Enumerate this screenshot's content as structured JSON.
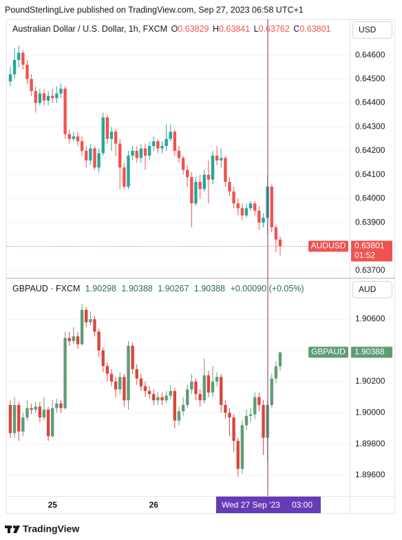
{
  "header": {
    "publisher": "PoundSterlingLive published on TradingView.com, Sep 27, 2023 06:58 UTC+1"
  },
  "crosshair_label": {
    "date": "Wed 27 Sep '23",
    "time": "03:00"
  },
  "footer": {
    "brand": "TradingView"
  },
  "chart_data": [
    {
      "type": "candlestick",
      "title": "Australian Dollar / U.S. Dollar, 1h, FXCM",
      "ohlc_labels": [
        "O",
        "H",
        "L",
        "C"
      ],
      "currency": "USD",
      "symbol": "AUDUSD",
      "countdown": "01:52",
      "price_line": true,
      "grid": true,
      "up_color": "#26a69a",
      "down_color": "#ef5350",
      "ylim": [
        0.6367,
        0.6475
      ],
      "yticks": [
        {
          "value": 0.646,
          "label": "0.64600"
        },
        {
          "value": 0.645,
          "label": "0.64500"
        },
        {
          "value": 0.644,
          "label": "0.64400"
        },
        {
          "value": 0.643,
          "label": "0.64300"
        },
        {
          "value": 0.642,
          "label": "0.64200"
        },
        {
          "value": 0.641,
          "label": "0.64100"
        },
        {
          "value": 0.64,
          "label": "0.64000"
        },
        {
          "value": 0.639,
          "label": "0.63900"
        },
        {
          "value": 0.638,
          "label": "0.63800"
        },
        {
          "value": 0.637,
          "label": "0.63700"
        }
      ],
      "open": [
        0.6449,
        0.6452,
        0.6458,
        0.6461,
        0.6456,
        0.645,
        0.6445,
        0.644,
        0.6444,
        0.6441,
        0.6443,
        0.6442,
        0.6444,
        0.6446,
        0.6427,
        0.6425,
        0.6426,
        0.6424,
        0.642,
        0.6416,
        0.6421,
        0.6413,
        0.6419,
        0.6434,
        0.6425,
        0.6428,
        0.6423,
        0.6413,
        0.6405,
        0.6418,
        0.642,
        0.6417,
        0.6421,
        0.6418,
        0.6422,
        0.6424,
        0.6421,
        0.6422,
        0.6425,
        0.6428,
        0.642,
        0.6417,
        0.6412,
        0.6409,
        0.6398,
        0.6407,
        0.6404,
        0.641,
        0.6408,
        0.6418,
        0.6416,
        0.6417,
        0.6407,
        0.6403,
        0.6398,
        0.6396,
        0.6393,
        0.6396,
        0.6398,
        0.6395,
        0.639,
        0.6392,
        0.6405,
        0.6388,
        0.63829
      ],
      "high": [
        0.6455,
        0.6463,
        0.6464,
        0.6462,
        0.6458,
        0.6452,
        0.6447,
        0.6446,
        0.6446,
        0.6445,
        0.6446,
        0.6447,
        0.6448,
        0.6447,
        0.6429,
        0.6428,
        0.6428,
        0.6426,
        0.6422,
        0.6423,
        0.6422,
        0.6421,
        0.6436,
        0.6435,
        0.643,
        0.6429,
        0.6425,
        0.6415,
        0.642,
        0.6422,
        0.6422,
        0.6423,
        0.6423,
        0.6424,
        0.6426,
        0.6425,
        0.6424,
        0.6431,
        0.6431,
        0.6429,
        0.6422,
        0.6418,
        0.6414,
        0.6411,
        0.6409,
        0.641,
        0.6412,
        0.6416,
        0.642,
        0.6422,
        0.6421,
        0.6418,
        0.6409,
        0.6405,
        0.64,
        0.6398,
        0.6398,
        0.6399,
        0.6399,
        0.6397,
        0.6394,
        0.641,
        0.6406,
        0.6389,
        0.63841
      ],
      "low": [
        0.6447,
        0.645,
        0.6455,
        0.6454,
        0.6448,
        0.6443,
        0.6436,
        0.6439,
        0.6439,
        0.6439,
        0.644,
        0.644,
        0.6442,
        0.6425,
        0.6423,
        0.6424,
        0.6422,
        0.6418,
        0.6413,
        0.6414,
        0.6412,
        0.6411,
        0.6418,
        0.6423,
        0.642,
        0.6418,
        0.6404,
        0.6404,
        0.6404,
        0.6416,
        0.6415,
        0.6415,
        0.6412,
        0.6416,
        0.642,
        0.6419,
        0.6419,
        0.642,
        0.6424,
        0.6418,
        0.6415,
        0.641,
        0.6405,
        0.6388,
        0.6397,
        0.64,
        0.6403,
        0.6398,
        0.6406,
        0.6414,
        0.6413,
        0.6405,
        0.6401,
        0.6396,
        0.6393,
        0.6391,
        0.6392,
        0.6395,
        0.6393,
        0.6387,
        0.6388,
        0.6385,
        0.6386,
        0.63775,
        0.63762
      ],
      "close": [
        0.6452,
        0.6458,
        0.6461,
        0.6456,
        0.645,
        0.6445,
        0.644,
        0.6444,
        0.6441,
        0.6443,
        0.6442,
        0.6444,
        0.6446,
        0.6427,
        0.6425,
        0.6426,
        0.6424,
        0.642,
        0.6416,
        0.6421,
        0.6413,
        0.6419,
        0.6434,
        0.6425,
        0.6428,
        0.6423,
        0.6413,
        0.6405,
        0.6418,
        0.642,
        0.6417,
        0.6421,
        0.6418,
        0.6422,
        0.6424,
        0.6421,
        0.6422,
        0.6425,
        0.6428,
        0.642,
        0.6417,
        0.6412,
        0.6409,
        0.6398,
        0.6407,
        0.6404,
        0.641,
        0.6408,
        0.6418,
        0.6416,
        0.6417,
        0.6407,
        0.6403,
        0.6398,
        0.6396,
        0.6393,
        0.6396,
        0.6398,
        0.6395,
        0.639,
        0.6392,
        0.6405,
        0.6388,
        0.63829,
        0.63801
      ]
    },
    {
      "type": "candlestick",
      "title": "GBPAUD · FXCM",
      "change_label": "+0.00090 (+0.05%)",
      "currency": "AUD",
      "symbol": "GBPAUD",
      "price_line": false,
      "grid": true,
      "up_color": "#5f9c78",
      "down_color": "#d9463b",
      "ylim": [
        1.89467,
        1.90858
      ],
      "yticks": [
        {
          "value": 1.906,
          "label": "1.90600"
        },
        {
          "value": 1.904,
          "label": "1.90400"
        },
        {
          "value": 1.902,
          "label": "1.90200"
        },
        {
          "value": 1.9,
          "label": "1.90000"
        },
        {
          "value": 1.898,
          "label": "1.89800"
        },
        {
          "value": 1.896,
          "label": "1.89600"
        }
      ],
      "categories": [
        null,
        null,
        null,
        null,
        null,
        null,
        null,
        null,
        null,
        null,
        "25",
        null,
        null,
        null,
        null,
        null,
        null,
        null,
        null,
        null,
        null,
        null,
        null,
        null,
        null,
        null,
        null,
        null,
        null,
        null,
        null,
        null,
        null,
        null,
        "26",
        null,
        null,
        null,
        null,
        null,
        null,
        null,
        null,
        null,
        null,
        null,
        null,
        null,
        null,
        null,
        null,
        null,
        null,
        null,
        null,
        null,
        null,
        null,
        null,
        null,
        null,
        null,
        null,
        null,
        null
      ],
      "open": [
        1.9005,
        1.8987,
        1.9005,
        1.8988,
        1.8997,
        1.9003,
        1.9002,
        1.9004,
        1.8997,
        1.9002,
        1.8985,
        1.9003,
        1.9006,
        1.9003,
        1.9048,
        1.9046,
        1.9049,
        1.9044,
        1.9066,
        1.9058,
        1.906,
        1.9052,
        1.904,
        1.903,
        1.9025,
        1.902,
        1.9015,
        1.9023,
        1.9008,
        1.9043,
        1.9028,
        1.9022,
        1.9017,
        1.9014,
        1.9012,
        1.9008,
        1.901,
        1.9008,
        1.9011,
        1.9014,
        1.8995,
        1.9001,
        1.9005,
        1.9015,
        1.902,
        1.9012,
        1.9008,
        1.9024,
        1.9013,
        1.902,
        1.9023,
        1.9005,
        1.9,
        1.8997,
        1.8982,
        1.8964,
        1.8992,
        1.8998,
        1.8999,
        1.901,
        1.9005,
        1.8984,
        1.9005,
        1.9022,
        1.90298
      ],
      "high": [
        1.9008,
        1.901,
        1.9007,
        1.9,
        1.9008,
        1.9006,
        1.9007,
        1.9007,
        1.901,
        1.9004,
        1.9008,
        1.9009,
        1.9008,
        1.9052,
        1.9052,
        1.9055,
        1.9052,
        1.907,
        1.9068,
        1.9065,
        1.9062,
        1.9054,
        1.9042,
        1.9032,
        1.9028,
        1.9023,
        1.9026,
        1.9025,
        1.9046,
        1.9045,
        1.9031,
        1.9025,
        1.902,
        1.9017,
        1.9015,
        1.9013,
        1.9013,
        1.9014,
        1.9018,
        1.9016,
        1.9004,
        1.901,
        1.9018,
        1.9025,
        1.9022,
        1.9015,
        1.9035,
        1.9027,
        1.903,
        1.9026,
        1.9025,
        1.9008,
        1.9003,
        1.8999,
        1.8984,
        1.8995,
        1.9002,
        1.9003,
        1.9013,
        1.9013,
        1.9008,
        1.9008,
        1.9025,
        1.9033,
        1.90388
      ],
      "low": [
        1.8984,
        1.8984,
        1.8982,
        1.8985,
        1.8995,
        1.8999,
        1.9,
        1.8994,
        1.8995,
        1.8982,
        1.8984,
        1.9,
        1.9,
        1.9002,
        1.9043,
        1.9044,
        1.9041,
        1.9043,
        1.9055,
        1.9056,
        1.9049,
        1.9036,
        1.9026,
        1.902,
        1.9017,
        1.901,
        1.9012,
        1.9004,
        1.9002,
        1.9025,
        1.9018,
        1.9014,
        1.901,
        1.9009,
        1.9005,
        1.9005,
        1.9005,
        1.9006,
        1.9009,
        1.899,
        1.8992,
        1.8998,
        1.9003,
        1.9012,
        1.9008,
        1.9004,
        1.9006,
        1.901,
        1.901,
        1.9017,
        1.9,
        1.8996,
        1.8985,
        1.8975,
        1.8959,
        1.8961,
        1.8989,
        1.8994,
        1.8996,
        1.9001,
        1.8973,
        1.8968,
        1.9003,
        1.9019,
        1.90267
      ],
      "close": [
        1.8987,
        1.9005,
        1.8988,
        1.8997,
        1.9003,
        1.9002,
        1.9004,
        1.8997,
        1.9002,
        1.8985,
        1.9003,
        1.9006,
        1.9003,
        1.9048,
        1.9046,
        1.9049,
        1.9044,
        1.9066,
        1.9058,
        1.906,
        1.9052,
        1.904,
        1.903,
        1.9025,
        1.902,
        1.9015,
        1.9023,
        1.9008,
        1.9043,
        1.9028,
        1.9022,
        1.9017,
        1.9014,
        1.9012,
        1.9008,
        1.901,
        1.9008,
        1.9011,
        1.9014,
        1.8995,
        1.9001,
        1.9005,
        1.9015,
        1.902,
        1.9012,
        1.9008,
        1.9024,
        1.9013,
        1.902,
        1.9023,
        1.9005,
        1.9,
        1.8997,
        1.8982,
        1.8964,
        1.8992,
        1.8998,
        1.8999,
        1.901,
        1.9005,
        1.8984,
        1.9005,
        1.9022,
        1.90298,
        1.90388
      ]
    }
  ]
}
